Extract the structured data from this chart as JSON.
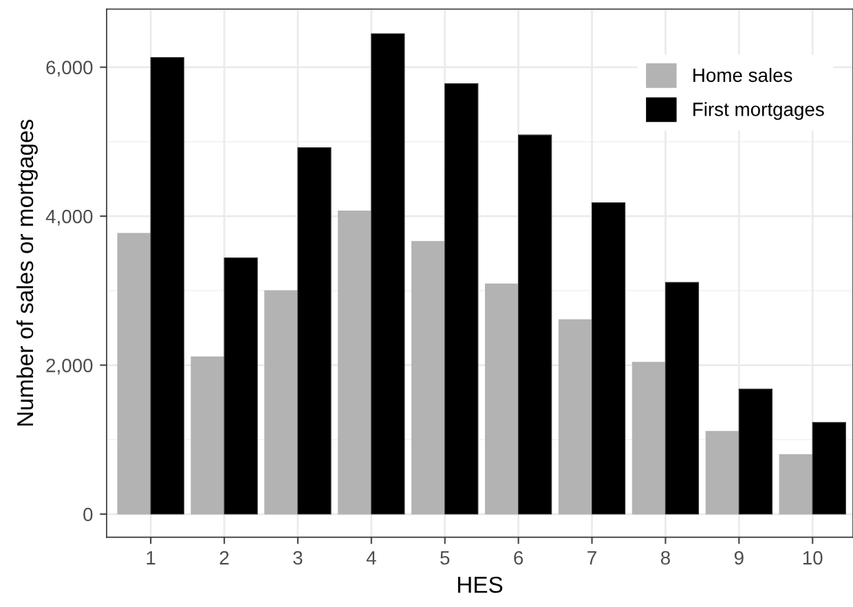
{
  "chart_data": {
    "type": "bar",
    "xlabel": "HES",
    "ylabel": "Number of sales or mortgages",
    "categories": [
      "1",
      "2",
      "3",
      "4",
      "5",
      "6",
      "7",
      "8",
      "9",
      "10"
    ],
    "series": [
      {
        "name": "Home sales",
        "color": "#b3b3b3",
        "values": [
          3770,
          2110,
          3000,
          4070,
          3660,
          3090,
          2610,
          2040,
          1110,
          800
        ]
      },
      {
        "name": "First mortgages",
        "color": "#000000",
        "values": [
          6130,
          3440,
          4920,
          6450,
          5780,
          5090,
          4180,
          3110,
          1680,
          1230
        ]
      }
    ],
    "ylim": [
      -310,
      6780
    ],
    "yticks": [
      {
        "value": 0,
        "label": "0"
      },
      {
        "value": 2000,
        "label": "2,000"
      },
      {
        "value": 4000,
        "label": "4,000"
      },
      {
        "value": 6000,
        "label": "6,000"
      }
    ],
    "grid": true,
    "legend": "top right"
  }
}
